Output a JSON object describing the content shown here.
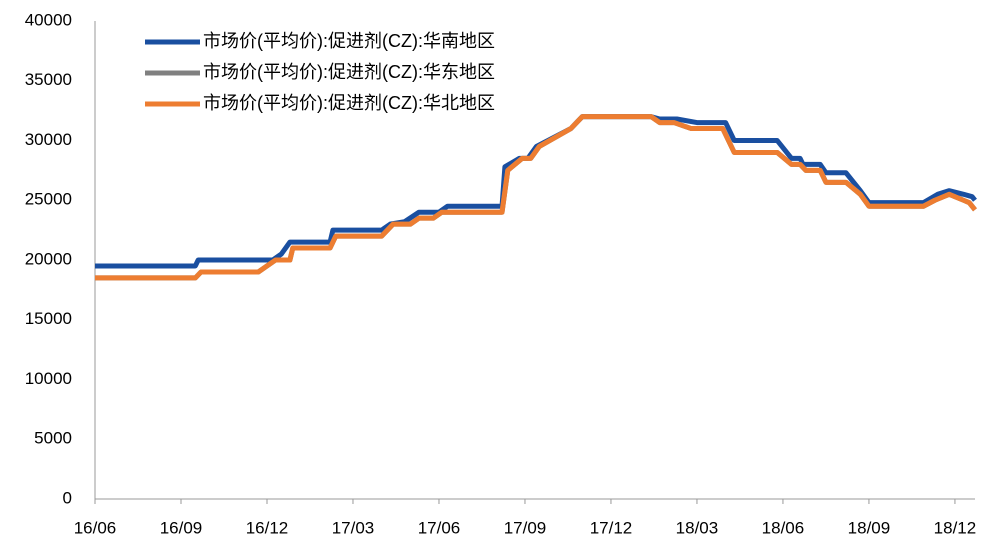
{
  "chart_data": {
    "type": "line",
    "xlim": [
      0,
      30.7
    ],
    "xticks": [
      {
        "value": 0,
        "label": "16/06"
      },
      {
        "value": 3,
        "label": "16/09"
      },
      {
        "value": 6,
        "label": "16/12"
      },
      {
        "value": 9,
        "label": "17/03"
      },
      {
        "value": 12,
        "label": "17/06"
      },
      {
        "value": 15,
        "label": "17/09"
      },
      {
        "value": 18,
        "label": "17/12"
      },
      {
        "value": 21,
        "label": "18/03"
      },
      {
        "value": 24,
        "label": "18/06"
      },
      {
        "value": 27,
        "label": "18/09"
      },
      {
        "value": 30,
        "label": "18/12"
      }
    ],
    "ylim": [
      0,
      40000
    ],
    "yticks": [
      0,
      5000,
      10000,
      15000,
      20000,
      25000,
      30000,
      35000,
      40000
    ],
    "grid": false,
    "legend": "top-left",
    "series": [
      {
        "name": "市场价(平均价):促进剂(CZ):华南地区",
        "color": "#1a4fa0",
        "x": [
          0,
          3.5,
          3.6,
          6.2,
          6.5,
          6.8,
          8.2,
          8.3,
          10.0,
          10.3,
          10.8,
          11.3,
          12.0,
          12.3,
          14.2,
          14.3,
          14.8,
          15.1,
          15.4,
          16.6,
          17.0,
          19.4,
          19.7,
          20.3,
          21.0,
          22.0,
          22.3,
          23.8,
          24.3,
          24.6,
          24.7,
          25.3,
          25.5,
          26.2,
          26.7,
          27.0,
          28.9,
          29.4,
          29.8,
          30.3,
          30.6,
          30.7
        ],
        "values": [
          19500,
          19500,
          20000,
          20000,
          20500,
          21500,
          21500,
          22500,
          22500,
          23000,
          23200,
          24000,
          24000,
          24500,
          24500,
          27800,
          28500,
          28500,
          29500,
          31000,
          32000,
          32000,
          31800,
          31800,
          31500,
          31500,
          30000,
          30000,
          28500,
          28500,
          28000,
          28000,
          27300,
          27300,
          25800,
          24800,
          24800,
          25500,
          25800,
          25500,
          25300,
          25000
        ]
      },
      {
        "name": "市场价(平均价):促进剂(CZ):华东地区",
        "color": "#808080",
        "x": [
          0,
          3.5,
          3.7,
          5.7,
          6.0,
          6.3,
          6.8,
          6.9,
          8.2,
          8.4,
          10.0,
          10.4,
          11.0,
          11.3,
          11.8,
          12.1,
          14.2,
          14.4,
          14.9,
          15.2,
          15.5,
          16.6,
          17.0,
          19.4,
          19.7,
          20.2,
          20.8,
          21.9,
          22.3,
          23.8,
          24.3,
          24.6,
          24.8,
          25.3,
          25.5,
          26.2,
          26.7,
          27.0,
          28.9,
          29.3,
          29.8,
          30.3,
          30.5,
          30.7
        ],
        "values": [
          18500,
          18500,
          19000,
          19000,
          19500,
          20000,
          20000,
          21000,
          21000,
          22000,
          22000,
          23000,
          23000,
          23500,
          23500,
          24000,
          24000,
          27500,
          28500,
          28500,
          29500,
          31000,
          32000,
          32000,
          31500,
          31500,
          31000,
          31000,
          29000,
          29000,
          28000,
          28000,
          27500,
          27500,
          26500,
          26500,
          25500,
          24500,
          24500,
          25000,
          25500,
          25000,
          24800,
          24200
        ]
      },
      {
        "name": "市场价(平均价):促进剂(CZ):华北地区",
        "color": "#ed7d31",
        "x": [
          0,
          3.5,
          3.7,
          5.7,
          6.0,
          6.3,
          6.8,
          6.9,
          8.2,
          8.4,
          10.0,
          10.4,
          11.0,
          11.3,
          11.8,
          12.1,
          14.2,
          14.4,
          14.9,
          15.2,
          15.5,
          16.6,
          17.0,
          19.4,
          19.7,
          20.2,
          20.8,
          21.9,
          22.3,
          23.8,
          24.3,
          24.6,
          24.8,
          25.3,
          25.5,
          26.2,
          26.7,
          27.0,
          28.9,
          29.3,
          29.8,
          30.3,
          30.5,
          30.7
        ],
        "values": [
          18500,
          18500,
          19000,
          19000,
          19500,
          20000,
          20000,
          21000,
          21000,
          22000,
          22000,
          23000,
          23000,
          23500,
          23500,
          24000,
          24000,
          27500,
          28500,
          28500,
          29500,
          31000,
          32000,
          32000,
          31500,
          31500,
          31000,
          31000,
          29000,
          29000,
          28000,
          28000,
          27500,
          27500,
          26500,
          26500,
          25500,
          24500,
          24500,
          25000,
          25500,
          25000,
          24800,
          24200
        ]
      }
    ]
  }
}
